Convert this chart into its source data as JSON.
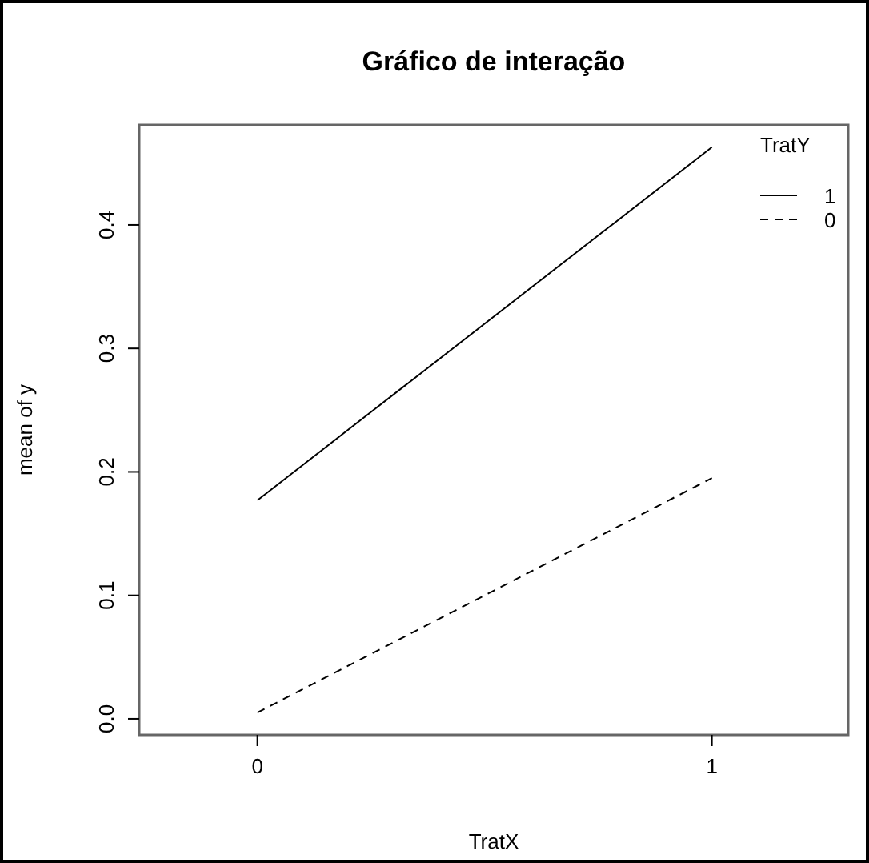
{
  "chart_data": {
    "type": "line",
    "title": "Gráfico de interação",
    "xlabel": "TratX",
    "ylabel": "mean of  y",
    "legend_title": "TratY",
    "x": [
      0,
      1
    ],
    "series": [
      {
        "name": "1",
        "color": "#000000",
        "values": [
          0.177,
          0.463
        ],
        "line_style": "solid"
      },
      {
        "name": "0",
        "color": "#000000",
        "values": [
          0.005,
          0.195
        ],
        "line_style": "dashed"
      }
    ],
    "xlim": [
      -0.26,
      1.3
    ],
    "xticks": [
      0,
      1
    ],
    "ylim": [
      -0.013,
      0.481
    ],
    "yticks": [
      {
        "value": 0,
        "label": "0.0"
      },
      {
        "value": 0.1,
        "label": "0.1"
      },
      {
        "value": 0.2,
        "label": "0.2"
      },
      {
        "value": 0.3,
        "label": "0.3"
      },
      {
        "value": 0.4,
        "label": "0.4"
      }
    ],
    "legend": "top right",
    "grid": false,
    "marker": "none"
  }
}
